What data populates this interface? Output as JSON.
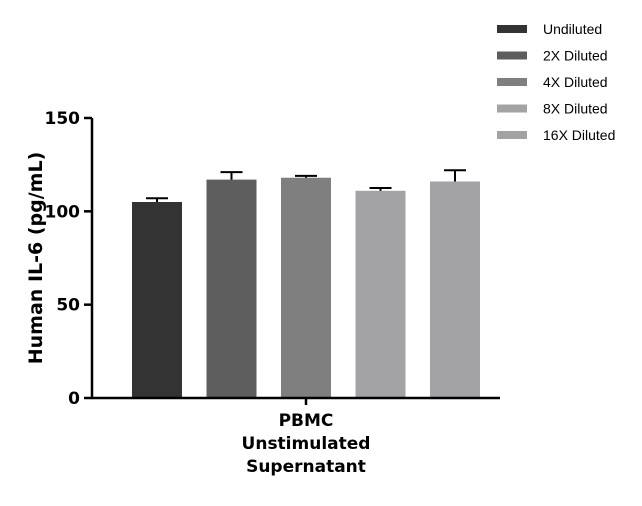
{
  "chart_data": {
    "type": "bar",
    "categories": [
      "PBMC Unstimulated Supernatant"
    ],
    "category_label_lines": [
      "PBMC",
      "Unstimulated",
      "Supernatant"
    ],
    "ylabel": "Human IL-6 (pg/mL)",
    "xlabel": "",
    "ylim": [
      0,
      150
    ],
    "yticks": [
      0,
      50,
      100,
      150
    ],
    "legend_position": "top-right",
    "grid": false,
    "series": [
      {
        "name": "Undiluted",
        "values": [
          105
        ],
        "error": [
          2
        ],
        "color": "#333333"
      },
      {
        "name": "2X Diluted",
        "values": [
          117
        ],
        "error": [
          4
        ],
        "color": "#5e5e5e"
      },
      {
        "name": "4X Diluted",
        "values": [
          118
        ],
        "error": [
          1
        ],
        "color": "#7f7f7f"
      },
      {
        "name": "8X Diluted",
        "values": [
          111
        ],
        "error": [
          1.5
        ],
        "color": "#a3a3a5"
      },
      {
        "name": "16X Diluted",
        "values": [
          116
        ],
        "error": [
          6
        ],
        "color": "#a3a3a5"
      }
    ]
  }
}
